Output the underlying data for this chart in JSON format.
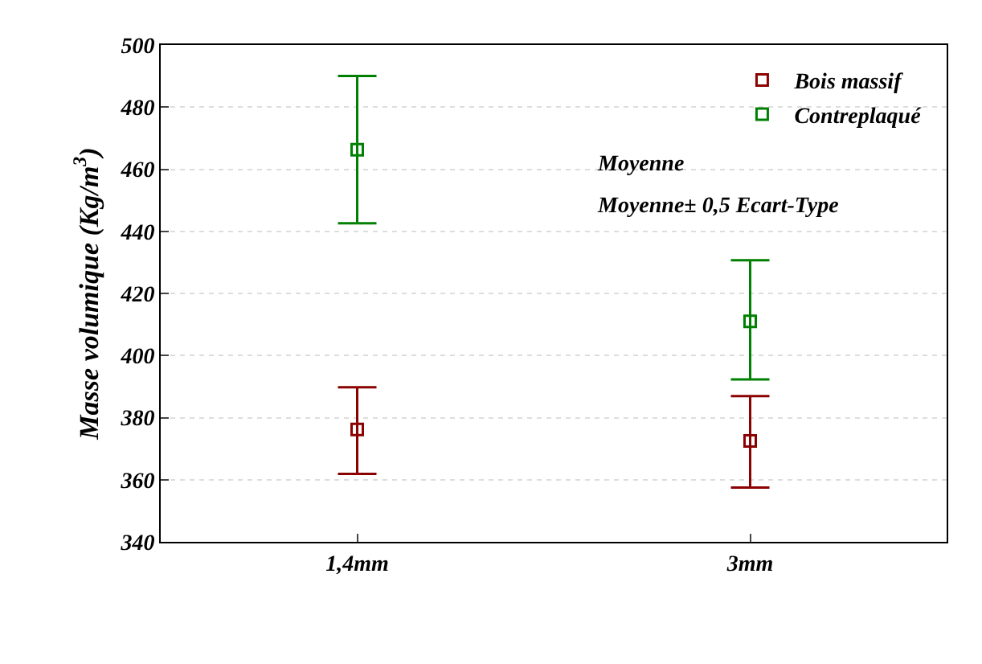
{
  "chart_data": {
    "type": "scatter",
    "ylabel": "Masse volumique (Kg/m$^{3}$)",
    "categories": [
      "1,4mm",
      "3mm"
    ],
    "series": [
      {
        "name": "Bois massif",
        "color": "#8b0000",
        "values": [
          376.2,
          372.5
        ],
        "errors": [
          [
            361.9,
            389.8
          ],
          [
            357.5,
            386.9
          ]
        ]
      },
      {
        "name": "Contreplaqué",
        "color": "#008000",
        "values": [
          466.3,
          411.0
        ],
        "errors": [
          [
            442.6,
            490.0
          ],
          [
            392.3,
            430.7
          ]
        ]
      }
    ],
    "ylim": [
      340,
      500
    ],
    "yticks": [
      340,
      360,
      380,
      400,
      420,
      440,
      460,
      480,
      500
    ],
    "grid": "y",
    "legend": "top right",
    "marker": "square",
    "annotations": [
      "Moyenne",
      "Moyenne± 0,5 Ecart-Type"
    ]
  }
}
